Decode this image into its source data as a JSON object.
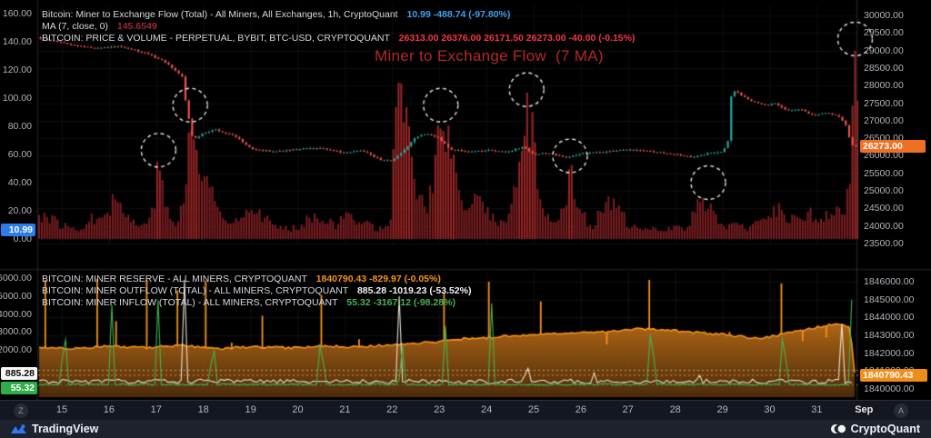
{
  "top_panel": {
    "legend": [
      {
        "label": "Bitcoin: Miner to Exchange Flow (Total) - All Miners, All Exchanges, 1h, CryptoQuant",
        "values": "10.99  -488.74 (-97.80%)"
      },
      {
        "label": "MA (7, close, 0)",
        "values": "145.6549"
      },
      {
        "label": "BITCOIN: PRICE & VOLUME - PERPETUAL, BYBIT, BTC-USD, CRYPTOQUANT",
        "values": "26313.00  26376.00  26171.50  26273.00  -40.00 (-0.15%)"
      }
    ],
    "annotation": "Miner to Exchange Flow  (7 MA)",
    "flow_badge": "10.99",
    "price_badge": "26273.00"
  },
  "bottom_panel": {
    "legend": [
      {
        "label": "BITCOIN: MINER RESERVE - ALL MINERS, CRYPTOQUANT",
        "values": "1840790.43  -829.97 (-0.05%)"
      },
      {
        "label": "BITCOIN: MINER OUTFLOW (TOTAL) - ALL MINERS, CRYPTOQUANT",
        "values": "885.28  -1019.23 (-53.52%)"
      },
      {
        "label": "BITCOIN: MINER INFLOW (TOTAL) - ALL MINERS, CRYPTOQUANT",
        "values": "55.32  -3167.12 (-98.28%)"
      }
    ],
    "outflow_badge": "885.28",
    "inflow_badge": "55.32",
    "reserve_badge": "1840790.43"
  },
  "axis_bar": {
    "tz_button": "Z",
    "auto_button": "A"
  },
  "footer": {
    "tradingview_label": "TradingView",
    "cryptoquant_label": "CryptoQuant"
  },
  "colors": {
    "flow_value": "#3da1f0",
    "ma_value": "#9c2b2b",
    "price_value": "#f23645",
    "reserve_value": "#f5941e",
    "outflow_value": "#f2f2f2",
    "inflow_value": "#43b34f",
    "bar": "#7d1e22",
    "bar_bright": "#9d2626",
    "candle_up": "#26a69a",
    "candle_down": "#ef5350",
    "annotation": "#b32828",
    "reserve_line": "#f5941e",
    "badge_flow_bg": "#2b7de9",
    "badge_price_bg": "#ee7024",
    "badge_reserve_bg": "#ef8c1a",
    "badge_outflow_bg": "#f5f6f8",
    "badge_inflow_bg": "#2fae47"
  },
  "chart_data": {
    "panels": [
      {
        "type": "bar",
        "title": "Bitcoin: Miner to Exchange Flow (Total), 1h, with BTC price candlesticks overlaid",
        "x_unit": "day of August (32 = Sep 1)",
        "x_range": [
          14.5,
          31.88
        ],
        "flow_axis": {
          "range": [
            0,
            160
          ],
          "ticks": [
            160,
            140,
            120,
            100,
            80,
            60,
            40,
            20,
            0
          ],
          "current": 10.99
        },
        "price_axis": {
          "range": [
            23500,
            30000
          ],
          "ticks": [
            30000,
            29500,
            29000,
            28500,
            28000,
            27500,
            27000,
            26500,
            26000,
            25500,
            25000,
            24500,
            24000,
            23500
          ],
          "current": 26273.0
        },
        "flow_envelope": [
          [
            14.52,
            24
          ],
          [
            14.75,
            20
          ],
          [
            15.0,
            13
          ],
          [
            15.3,
            9
          ],
          [
            15.6,
            17
          ],
          [
            15.95,
            30
          ],
          [
            16.15,
            38
          ],
          [
            16.4,
            22
          ],
          [
            16.65,
            10
          ],
          [
            16.9,
            26
          ],
          [
            17.05,
            64
          ],
          [
            17.2,
            28
          ],
          [
            17.45,
            12
          ],
          [
            17.6,
            40
          ],
          [
            17.72,
            97
          ],
          [
            17.85,
            70
          ],
          [
            18.05,
            56
          ],
          [
            18.3,
            30
          ],
          [
            18.55,
            12
          ],
          [
            18.85,
            30
          ],
          [
            19.15,
            28
          ],
          [
            19.45,
            14
          ],
          [
            19.7,
            9
          ],
          [
            20.0,
            12
          ],
          [
            20.3,
            22
          ],
          [
            20.55,
            21
          ],
          [
            20.8,
            12
          ],
          [
            21.1,
            24
          ],
          [
            21.4,
            17
          ],
          [
            21.7,
            9
          ],
          [
            21.95,
            13
          ],
          [
            22.12,
            132
          ],
          [
            22.28,
            112
          ],
          [
            22.45,
            52
          ],
          [
            22.7,
            26
          ],
          [
            22.95,
            80
          ],
          [
            23.05,
            96
          ],
          [
            23.2,
            86
          ],
          [
            23.4,
            38
          ],
          [
            23.6,
            28
          ],
          [
            23.85,
            38
          ],
          [
            24.1,
            22
          ],
          [
            24.4,
            13
          ],
          [
            24.7,
            60
          ],
          [
            24.85,
            108
          ],
          [
            25.0,
            90
          ],
          [
            25.2,
            28
          ],
          [
            25.5,
            12
          ],
          [
            25.77,
            59
          ],
          [
            25.95,
            38
          ],
          [
            26.2,
            10
          ],
          [
            26.5,
            30
          ],
          [
            26.75,
            32
          ],
          [
            27.0,
            13
          ],
          [
            27.3,
            8
          ],
          [
            27.6,
            9
          ],
          [
            27.95,
            12
          ],
          [
            28.25,
            9
          ],
          [
            28.55,
            40
          ],
          [
            28.75,
            33
          ],
          [
            29.0,
            12
          ],
          [
            29.3,
            13
          ],
          [
            29.6,
            9
          ],
          [
            29.9,
            22
          ],
          [
            30.2,
            28
          ],
          [
            30.5,
            17
          ],
          [
            30.8,
            24
          ],
          [
            31.1,
            19
          ],
          [
            31.4,
            25
          ],
          [
            31.6,
            29
          ],
          [
            31.75,
            55
          ],
          [
            31.81,
            147
          ],
          [
            31.86,
            110
          ]
        ],
        "price_keypoints": [
          [
            14.52,
            29380
          ],
          [
            15.2,
            29180
          ],
          [
            15.8,
            29060
          ],
          [
            16.3,
            29120
          ],
          [
            16.9,
            28900
          ],
          [
            17.3,
            28650
          ],
          [
            17.62,
            28250
          ],
          [
            17.7,
            27500
          ],
          [
            17.85,
            26450
          ],
          [
            18.05,
            26620
          ],
          [
            18.3,
            26760
          ],
          [
            18.75,
            26560
          ],
          [
            19.1,
            26180
          ],
          [
            19.6,
            26120
          ],
          [
            20.1,
            26190
          ],
          [
            20.6,
            26220
          ],
          [
            21.05,
            26080
          ],
          [
            21.45,
            26150
          ],
          [
            21.8,
            25900
          ],
          [
            22.05,
            25850
          ],
          [
            22.3,
            26120
          ],
          [
            22.55,
            26500
          ],
          [
            22.8,
            26640
          ],
          [
            23.05,
            26520
          ],
          [
            23.3,
            26180
          ],
          [
            23.7,
            26120
          ],
          [
            24.1,
            26160
          ],
          [
            24.5,
            26100
          ],
          [
            24.85,
            26260
          ],
          [
            25.05,
            26050
          ],
          [
            25.4,
            26080
          ],
          [
            25.77,
            25940
          ],
          [
            26.1,
            26080
          ],
          [
            26.5,
            26100
          ],
          [
            26.9,
            26160
          ],
          [
            27.3,
            26170
          ],
          [
            27.7,
            26100
          ],
          [
            28.1,
            26050
          ],
          [
            28.45,
            25960
          ],
          [
            28.8,
            26080
          ],
          [
            29.05,
            26120
          ],
          [
            29.18,
            26300
          ],
          [
            29.27,
            27900
          ],
          [
            29.45,
            27750
          ],
          [
            29.7,
            27560
          ],
          [
            29.95,
            27440
          ],
          [
            30.2,
            27500
          ],
          [
            30.45,
            27280
          ],
          [
            30.7,
            27340
          ],
          [
            31.0,
            27140
          ],
          [
            31.3,
            27240
          ],
          [
            31.55,
            27120
          ],
          [
            31.68,
            26900
          ],
          [
            31.78,
            26420
          ],
          [
            31.85,
            26273
          ]
        ],
        "circled_spikes": [
          [
            17.05,
            63
          ],
          [
            17.72,
            95
          ],
          [
            23.03,
            95
          ],
          [
            24.85,
            106
          ],
          [
            25.77,
            59
          ],
          [
            28.7,
            40
          ],
          [
            31.81,
            142
          ]
        ]
      },
      {
        "type": "area",
        "title": "Bitcoin Miner Reserve (area, right axis) with Miner Outflow / Inflow spikes (left axis)",
        "left_axis": {
          "range": [
            0,
            6000
          ],
          "ticks": [
            6000,
            5000,
            4000,
            3000,
            2000
          ],
          "outflow_current": 885.28,
          "inflow_current": 55.32
        },
        "right_axis": {
          "range": [
            1840000,
            1846000
          ],
          "ticks": [
            1846000,
            1845000,
            1844000,
            1843000,
            1842000,
            1841000,
            1840000
          ],
          "current": 1840790.43
        },
        "reserve_keypoints": [
          [
            14.52,
            1842350
          ],
          [
            15.3,
            1842250
          ],
          [
            16.0,
            1842400
          ],
          [
            16.8,
            1842300
          ],
          [
            17.5,
            1842450
          ],
          [
            18.3,
            1842250
          ],
          [
            19.0,
            1842350
          ],
          [
            19.8,
            1842300
          ],
          [
            20.5,
            1842400
          ],
          [
            21.3,
            1842350
          ],
          [
            22.1,
            1842500
          ],
          [
            22.8,
            1842600
          ],
          [
            23.5,
            1842800
          ],
          [
            24.2,
            1842900
          ],
          [
            25.0,
            1843050
          ],
          [
            25.8,
            1843100
          ],
          [
            26.5,
            1843200
          ],
          [
            27.2,
            1843350
          ],
          [
            27.8,
            1843300
          ],
          [
            28.5,
            1843150
          ],
          [
            29.2,
            1843000
          ],
          [
            29.8,
            1842800
          ],
          [
            30.3,
            1843100
          ],
          [
            30.9,
            1843400
          ],
          [
            31.4,
            1843650
          ],
          [
            31.6,
            1843550
          ],
          [
            31.72,
            1843450
          ],
          [
            31.77,
            1841100
          ],
          [
            31.81,
            1840790
          ]
        ],
        "reserve_spikes": [
          [
            14.65,
            5900
          ],
          [
            15.75,
            5950
          ],
          [
            16.15,
            3600
          ],
          [
            16.8,
            5900
          ],
          [
            17.45,
            5300
          ],
          [
            18.05,
            5850
          ],
          [
            18.6,
            2400
          ],
          [
            19.25,
            3900
          ],
          [
            20.5,
            5050
          ],
          [
            21.3,
            2600
          ],
          [
            23.1,
            5200
          ],
          [
            24.05,
            5800
          ],
          [
            25.15,
            4700
          ],
          [
            26.55,
            2300
          ],
          [
            27.45,
            5900
          ],
          [
            29.15,
            3000
          ],
          [
            30.25,
            5700
          ],
          [
            30.7,
            2500
          ],
          [
            31.2,
            2700
          ]
        ],
        "outflow_spikes": [
          [
            17.6,
            5900
          ],
          [
            22.14,
            6100
          ],
          [
            24.85,
            2100
          ],
          [
            26.3,
            1100
          ],
          [
            28.5,
            900
          ],
          [
            31.55,
            5400
          ]
        ],
        "inflow_spikes": [
          [
            15.05,
            5600
          ],
          [
            16.05,
            5500
          ],
          [
            17.05,
            5800
          ],
          [
            18.2,
            4200
          ],
          [
            20.5,
            4800
          ],
          [
            22.2,
            3500
          ],
          [
            23.15,
            5200
          ],
          [
            24.1,
            5600
          ],
          [
            27.5,
            6050
          ],
          [
            30.3,
            5600
          ],
          [
            31.74,
            4800
          ]
        ]
      }
    ],
    "x_ticks": [
      {
        "label": "15",
        "day": 15
      },
      {
        "label": "16",
        "day": 16
      },
      {
        "label": "17",
        "day": 17
      },
      {
        "label": "18",
        "day": 18
      },
      {
        "label": "19",
        "day": 19
      },
      {
        "label": "20",
        "day": 20
      },
      {
        "label": "21",
        "day": 21
      },
      {
        "label": "22",
        "day": 22
      },
      {
        "label": "23",
        "day": 23
      },
      {
        "label": "24",
        "day": 24
      },
      {
        "label": "25",
        "day": 25
      },
      {
        "label": "26",
        "day": 26
      },
      {
        "label": "27",
        "day": 27
      },
      {
        "label": "28",
        "day": 28
      },
      {
        "label": "29",
        "day": 29
      },
      {
        "label": "30",
        "day": 30
      },
      {
        "label": "31",
        "day": 31
      },
      {
        "label": "Sep",
        "day": 32
      }
    ]
  }
}
